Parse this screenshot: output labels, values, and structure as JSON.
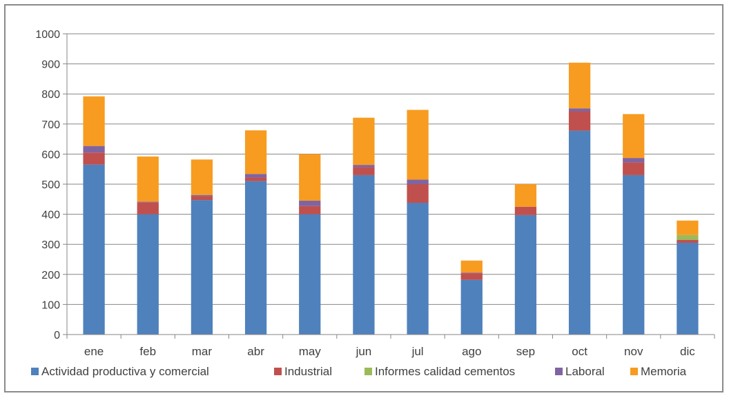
{
  "chart_data": {
    "type": "bar",
    "stacked": true,
    "title": "",
    "xlabel": "",
    "ylabel": "",
    "ylim": [
      0,
      1000
    ],
    "yticks": [
      0,
      100,
      200,
      300,
      400,
      500,
      600,
      700,
      800,
      900,
      1000
    ],
    "grid": true,
    "legend_position": "bottom",
    "categories": [
      "ene",
      "feb",
      "mar",
      "abr",
      "may",
      "jun",
      "jul",
      "ago",
      "sep",
      "oct",
      "nov",
      "dic"
    ],
    "series": [
      {
        "name": "Actividad productiva y comercial",
        "color": "#4f81bd",
        "values": [
          565,
          400,
          447,
          510,
          400,
          530,
          438,
          182,
          397,
          678,
          530,
          305
        ]
      },
      {
        "name": "Industrial",
        "color": "#c0504d",
        "values": [
          40,
          40,
          13,
          12,
          27,
          26,
          62,
          22,
          28,
          64,
          42,
          10
        ]
      },
      {
        "name": "Informes calidad cementos",
        "color": "#9bbb59",
        "values": [
          0,
          0,
          0,
          0,
          0,
          0,
          0,
          0,
          0,
          0,
          0,
          16
        ]
      },
      {
        "name": "Laboral",
        "color": "#8064a2",
        "values": [
          22,
          2,
          4,
          12,
          18,
          8,
          15,
          2,
          0,
          10,
          15,
          0
        ]
      },
      {
        "name": "Memoria",
        "color": "#f79c21",
        "values": [
          165,
          150,
          118,
          145,
          155,
          157,
          232,
          40,
          75,
          152,
          146,
          48
        ]
      }
    ]
  }
}
